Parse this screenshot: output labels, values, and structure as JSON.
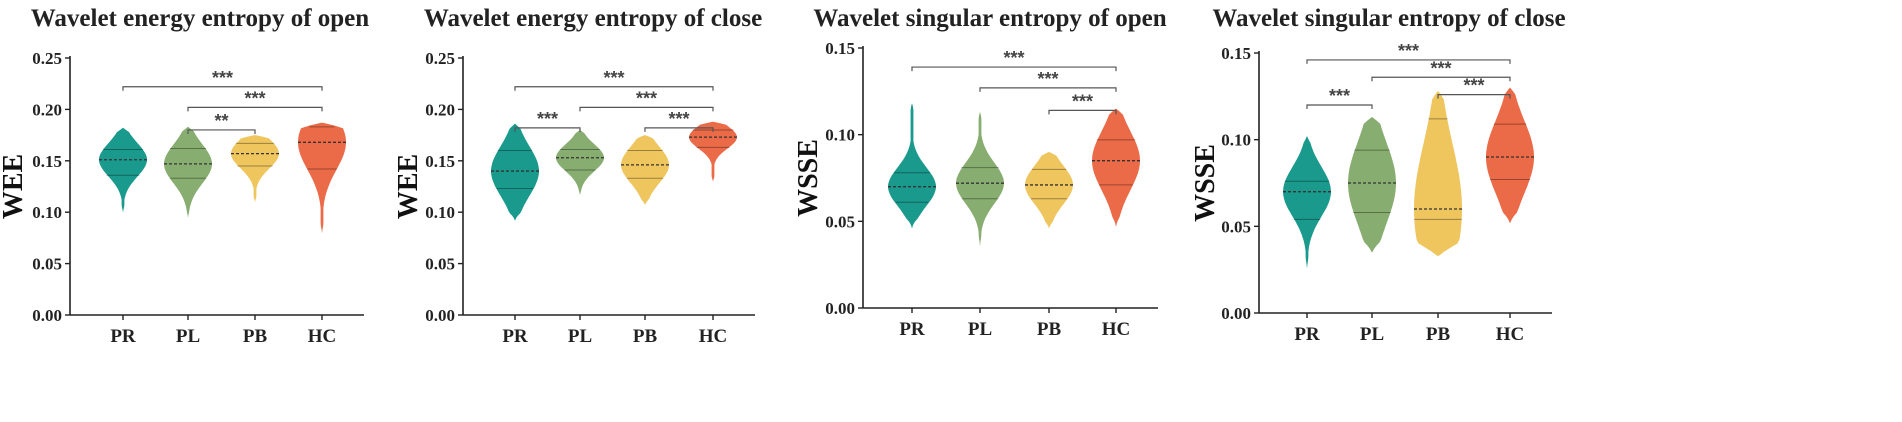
{
  "chart_data": [
    {
      "type": "violin",
      "title": "Wavelet energy entropy of open",
      "ylabel": "WEE",
      "ylim": [
        0,
        0.25
      ],
      "yticks": [
        "0.00",
        "0.05",
        "0.10",
        "0.15",
        "0.20",
        "0.25"
      ],
      "categories": [
        "PR",
        "PL",
        "PB",
        "HC"
      ],
      "groups": [
        {
          "name": "PR",
          "color": "#1a9a8c",
          "min": 0.1,
          "max": 0.182,
          "q1": 0.136,
          "median": 0.151,
          "q3": 0.161
        },
        {
          "name": "PL",
          "color": "#88ad71",
          "min": 0.095,
          "max": 0.183,
          "q1": 0.133,
          "median": 0.147,
          "q3": 0.162
        },
        {
          "name": "PB",
          "color": "#efc55e",
          "min": 0.11,
          "max": 0.175,
          "q1": 0.145,
          "median": 0.157,
          "q3": 0.167
        },
        {
          "name": "HC",
          "color": "#eb6a48",
          "min": 0.08,
          "max": 0.187,
          "q1": 0.142,
          "median": 0.168,
          "q3": 0.183
        }
      ],
      "significance": [
        {
          "from": "PR",
          "to": "HC",
          "label": "***",
          "y": 0.222
        },
        {
          "from": "PL",
          "to": "HC",
          "label": "***",
          "y": 0.202
        },
        {
          "from": "PL",
          "to": "PB",
          "label": "**",
          "y": 0.18
        }
      ]
    },
    {
      "type": "violin",
      "title": "Wavelet energy entropy of close",
      "ylabel": "WEE",
      "ylim": [
        0,
        0.25
      ],
      "yticks": [
        "0.00",
        "0.05",
        "0.10",
        "0.15",
        "0.20",
        "0.25"
      ],
      "categories": [
        "PR",
        "PL",
        "PB",
        "HC"
      ],
      "groups": [
        {
          "name": "PR",
          "color": "#1a9a8c",
          "min": 0.092,
          "max": 0.186,
          "q1": 0.123,
          "median": 0.14,
          "q3": 0.16
        },
        {
          "name": "PL",
          "color": "#88ad71",
          "min": 0.117,
          "max": 0.18,
          "q1": 0.141,
          "median": 0.153,
          "q3": 0.161
        },
        {
          "name": "PB",
          "color": "#efc55e",
          "min": 0.107,
          "max": 0.175,
          "q1": 0.133,
          "median": 0.146,
          "q3": 0.16
        },
        {
          "name": "HC",
          "color": "#eb6a48",
          "min": 0.13,
          "max": 0.188,
          "q1": 0.163,
          "median": 0.173,
          "q3": 0.18
        }
      ],
      "significance": [
        {
          "from": "PR",
          "to": "HC",
          "label": "***",
          "y": 0.222
        },
        {
          "from": "PL",
          "to": "HC",
          "label": "***",
          "y": 0.202
        },
        {
          "from": "PR",
          "to": "PL",
          "label": "***",
          "y": 0.182
        },
        {
          "from": "PB",
          "to": "HC",
          "label": "***",
          "y": 0.182
        }
      ]
    },
    {
      "type": "violin",
      "title": "Wavelet singular entropy of open",
      "ylabel": "WSSE",
      "ylim": [
        0,
        0.15
      ],
      "yticks": [
        "0.00",
        "0.05",
        "0.10",
        "0.15"
      ],
      "categories": [
        "PR",
        "PL",
        "PB",
        "HC"
      ],
      "groups": [
        {
          "name": "PR",
          "color": "#1a9a8c",
          "min": 0.046,
          "max": 0.118,
          "q1": 0.061,
          "median": 0.07,
          "q3": 0.078
        },
        {
          "name": "PL",
          "color": "#88ad71",
          "min": 0.036,
          "max": 0.113,
          "q1": 0.063,
          "median": 0.072,
          "q3": 0.081
        },
        {
          "name": "PB",
          "color": "#efc55e",
          "min": 0.046,
          "max": 0.09,
          "q1": 0.063,
          "median": 0.071,
          "q3": 0.08
        },
        {
          "name": "HC",
          "color": "#eb6a48",
          "min": 0.047,
          "max": 0.115,
          "q1": 0.071,
          "median": 0.085,
          "q3": 0.097
        }
      ],
      "significance": [
        {
          "from": "PR",
          "to": "HC",
          "label": "***",
          "y": 0.139
        },
        {
          "from": "PL",
          "to": "HC",
          "label": "***",
          "y": 0.127
        },
        {
          "from": "PB",
          "to": "HC",
          "label": "***",
          "y": 0.114
        }
      ]
    },
    {
      "type": "violin",
      "title": "Wavelet singular entropy of close",
      "ylabel": "WSSE",
      "ylim": [
        0,
        0.15
      ],
      "yticks": [
        "0.00",
        "0.05",
        "0.10",
        "0.15"
      ],
      "categories": [
        "PR",
        "PL",
        "PB",
        "HC"
      ],
      "groups": [
        {
          "name": "PR",
          "color": "#1a9a8c",
          "min": 0.026,
          "max": 0.102,
          "q1": 0.054,
          "median": 0.07,
          "q3": 0.076
        },
        {
          "name": "PL",
          "color": "#88ad71",
          "min": 0.035,
          "max": 0.113,
          "q1": 0.058,
          "median": 0.075,
          "q3": 0.094
        },
        {
          "name": "PB",
          "color": "#efc55e",
          "min": 0.033,
          "max": 0.128,
          "q1": 0.054,
          "median": 0.06,
          "q3": 0.112
        },
        {
          "name": "HC",
          "color": "#eb6a48",
          "min": 0.052,
          "max": 0.13,
          "q1": 0.077,
          "median": 0.09,
          "q3": 0.109
        }
      ],
      "significance": [
        {
          "from": "PR",
          "to": "HC",
          "label": "***",
          "y": 0.146
        },
        {
          "from": "PL",
          "to": "HC",
          "label": "***",
          "y": 0.136
        },
        {
          "from": "PR",
          "to": "PL",
          "label": "***",
          "y": 0.12
        },
        {
          "from": "PB",
          "to": "HC",
          "label": "***",
          "y": 0.126
        }
      ]
    }
  ]
}
